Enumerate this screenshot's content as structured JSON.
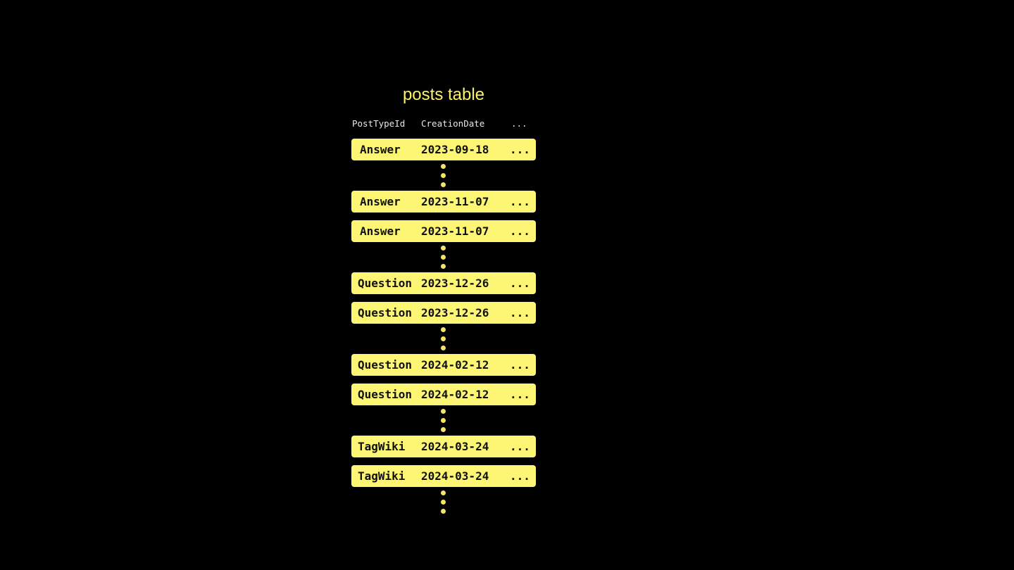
{
  "title": "posts table",
  "columns": [
    "PostTypeId",
    "CreationDate",
    "..."
  ],
  "rows": [
    {
      "type": "Answer",
      "date": "2023-09-18",
      "more": "...",
      "gap_after": true
    },
    {
      "type": "Answer",
      "date": "2023-11-07",
      "more": "...",
      "gap_after": false
    },
    {
      "type": "Answer",
      "date": "2023-11-07",
      "more": "...",
      "gap_after": true
    },
    {
      "type": "Question",
      "date": "2023-12-26",
      "more": "...",
      "gap_after": false
    },
    {
      "type": "Question",
      "date": "2023-12-26",
      "more": "...",
      "gap_after": true
    },
    {
      "type": "Question",
      "date": "2024-02-12",
      "more": "...",
      "gap_after": false
    },
    {
      "type": "Question",
      "date": "2024-02-12",
      "more": "...",
      "gap_after": true
    },
    {
      "type": "TagWiki",
      "date": "2024-03-24",
      "more": "...",
      "gap_after": false
    },
    {
      "type": "TagWiki",
      "date": "2024-03-24",
      "more": "...",
      "gap_after": true
    }
  ],
  "colors": {
    "row": "#fdf675",
    "title": "#fdf06a",
    "background": "#000000"
  }
}
